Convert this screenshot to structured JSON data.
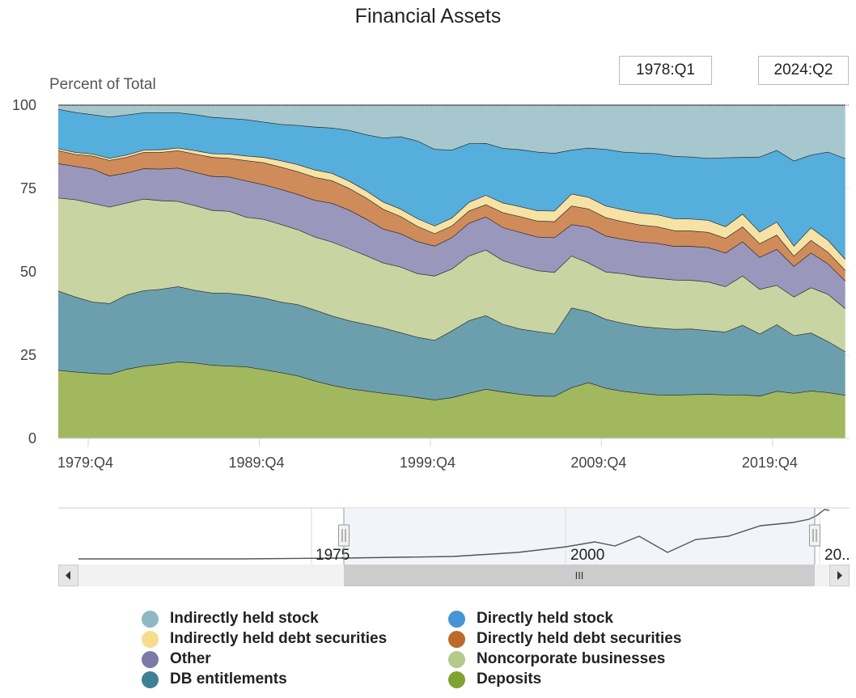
{
  "title": "Financial Assets",
  "range_selector": {
    "from": "1978:Q1",
    "to": "2024:Q2"
  },
  "navigator": {
    "tick_labels": [
      "1975",
      "2000",
      "20.."
    ],
    "scroll_thumb_glyph": "III",
    "handle_glyph": "||",
    "left_arrow": "◀",
    "right_arrow": "▶",
    "selected_range": [
      "1978:Q1",
      "2024:Q2"
    ]
  },
  "legend": [
    {
      "name": "Indirectly held stock",
      "color": "#8fb8c4"
    },
    {
      "name": "Directly held stock",
      "color": "#4695d6"
    },
    {
      "name": "Indirectly held debt securities",
      "color": "#f6dc8c"
    },
    {
      "name": "Directly held debt securities",
      "color": "#bb6a2a"
    },
    {
      "name": "Other",
      "color": "#7b7aa8"
    },
    {
      "name": "Noncorporate businesses",
      "color": "#b5c98c"
    },
    {
      "name": "DB entitlements",
      "color": "#3f8092"
    },
    {
      "name": "Deposits",
      "color": "#7fa232"
    }
  ],
  "chart_data": {
    "type": "area",
    "stacking": "percent",
    "title": "Financial Assets",
    "xlabel": "",
    "ylabel": "Percent of Total",
    "ylim": [
      0,
      100
    ],
    "yticks": [
      0,
      25,
      50,
      75,
      100
    ],
    "xtick_labels": [
      "1979:Q4",
      "1989:Q4",
      "1999:Q4",
      "2009:Q4",
      "2019:Q4"
    ],
    "grid": true,
    "legend_position": "bottom",
    "x": [
      1978,
      1979,
      1980,
      1981,
      1982,
      1983,
      1984,
      1985,
      1986,
      1987,
      1988,
      1989,
      1990,
      1991,
      1992,
      1993,
      1994,
      1995,
      1996,
      1997,
      1998,
      1999,
      2000,
      2001,
      2002,
      2003,
      2004,
      2005,
      2006,
      2007,
      2008,
      2009,
      2010,
      2011,
      2012,
      2013,
      2014,
      2015,
      2016,
      2017,
      2018,
      2019,
      2020,
      2021,
      2022,
      2023,
      2024
    ],
    "series": [
      {
        "name": "Deposits",
        "color": "#a1b85e",
        "values": [
          20.5,
          20.0,
          19.6,
          19.3,
          20.8,
          21.8,
          22.3,
          23.0,
          22.7,
          22.0,
          21.8,
          21.5,
          20.7,
          19.8,
          18.8,
          17.3,
          16.0,
          15.0,
          14.3,
          13.6,
          13.0,
          12.3,
          11.6,
          12.3,
          13.6,
          14.8,
          14.0,
          13.3,
          12.8,
          12.7,
          15.3,
          16.8,
          15.1,
          14.2,
          13.6,
          13.1,
          13.0,
          13.2,
          13.3,
          13.1,
          13.1,
          12.8,
          14.2,
          13.6,
          14.3,
          13.8,
          13.0
        ]
      },
      {
        "name": "DB entitlements",
        "color": "#6c9fae",
        "values": [
          23.8,
          22.5,
          21.4,
          21.2,
          22.3,
          22.6,
          22.5,
          22.6,
          21.8,
          21.7,
          21.8,
          21.5,
          21.5,
          21.2,
          21.4,
          21.3,
          20.8,
          20.4,
          20.0,
          19.6,
          18.8,
          18.1,
          17.9,
          20.0,
          21.8,
          22.1,
          20.3,
          19.6,
          19.3,
          18.7,
          23.9,
          21.3,
          20.7,
          20.4,
          20.1,
          20.1,
          19.8,
          19.7,
          19.1,
          18.9,
          20.9,
          18.6,
          20.0,
          17.3,
          17.4,
          15.3,
          13.1
        ]
      },
      {
        "name": "Noncorporate businesses",
        "color": "#c8d4a2",
        "values": [
          27.9,
          29.2,
          29.6,
          29.0,
          27.6,
          27.5,
          26.6,
          25.6,
          25.4,
          24.8,
          24.6,
          23.4,
          23.6,
          23.3,
          22.5,
          21.9,
          22.2,
          21.6,
          20.6,
          19.5,
          19.7,
          19.1,
          19.3,
          18.6,
          19.4,
          19.7,
          19.1,
          18.9,
          18.3,
          18.5,
          15.6,
          14.6,
          14.2,
          14.9,
          14.9,
          14.9,
          14.8,
          14.6,
          14.6,
          13.6,
          14.8,
          13.4,
          11.8,
          11.6,
          13.6,
          14.2,
          12.9
        ]
      },
      {
        "name": "Other",
        "color": "#9a97bd",
        "values": [
          10.3,
          10.0,
          10.3,
          9.3,
          9.0,
          9.1,
          9.5,
          10.0,
          10.0,
          10.2,
          10.3,
          10.9,
          10.4,
          10.5,
          10.6,
          11.0,
          11.6,
          11.6,
          11.0,
          10.2,
          10.0,
          9.6,
          9.0,
          9.4,
          9.8,
          9.9,
          9.9,
          10.1,
          10.1,
          10.4,
          9.4,
          10.8,
          10.8,
          10.3,
          10.4,
          10.5,
          10.1,
          10.2,
          10.3,
          10.1,
          10.3,
          9.6,
          10.8,
          9.2,
          10.4,
          9.1,
          8.3
        ]
      },
      {
        "name": "Directly held debt securities",
        "color": "#cf8c5a",
        "values": [
          3.9,
          3.6,
          3.9,
          4.7,
          4.7,
          4.9,
          5.0,
          5.2,
          5.5,
          5.7,
          5.6,
          6.1,
          6.6,
          6.7,
          6.8,
          6.9,
          6.8,
          6.5,
          6.3,
          5.9,
          5.2,
          4.6,
          3.7,
          3.5,
          3.7,
          3.7,
          4.5,
          4.7,
          4.8,
          4.8,
          5.6,
          5.4,
          5.5,
          5.3,
          5.1,
          5.0,
          4.7,
          4.6,
          4.6,
          4.4,
          4.5,
          4.1,
          4.3,
          3.1,
          3.8,
          3.5,
          3.2
        ]
      },
      {
        "name": "Indirectly held debt securities",
        "color": "#f6e2a4",
        "values": [
          0.6,
          0.6,
          0.6,
          0.6,
          0.7,
          0.7,
          0.8,
          0.8,
          1.0,
          1.1,
          1.3,
          1.4,
          1.6,
          1.9,
          2.1,
          2.2,
          2.2,
          2.2,
          2.2,
          2.2,
          2.2,
          2.3,
          2.3,
          2.4,
          2.6,
          2.8,
          2.9,
          3.0,
          3.1,
          3.2,
          3.6,
          3.5,
          3.5,
          3.6,
          3.6,
          3.6,
          3.6,
          3.6,
          3.6,
          3.5,
          3.8,
          3.5,
          3.9,
          3.0,
          3.8,
          3.6,
          3.3
        ]
      },
      {
        "name": "Directly held stock",
        "color": "#55aedb",
        "values": [
          11.8,
          12.0,
          11.8,
          12.4,
          12.0,
          11.2,
          11.1,
          10.6,
          10.8,
          10.9,
          10.7,
          10.9,
          10.6,
          10.9,
          11.8,
          12.9,
          13.6,
          15.2,
          16.8,
          19.2,
          21.7,
          23.3,
          23.0,
          20.4,
          17.6,
          15.6,
          16.4,
          17.1,
          17.6,
          17.3,
          13.2,
          14.8,
          17.0,
          17.3,
          18.0,
          18.3,
          18.7,
          18.6,
          18.6,
          20.7,
          17.0,
          22.5,
          21.5,
          25.5,
          21.8,
          26.5,
          30.2
        ]
      },
      {
        "name": "Indirectly held stock",
        "color": "#a7c7cf",
        "values": [
          1.2,
          2.1,
          2.8,
          3.5,
          2.9,
          2.2,
          2.2,
          2.2,
          2.8,
          3.6,
          3.9,
          4.4,
          5.0,
          5.7,
          6.0,
          6.5,
          6.8,
          7.5,
          8.8,
          9.8,
          9.4,
          10.7,
          13.2,
          13.4,
          11.5,
          11.4,
          12.9,
          13.3,
          14.0,
          14.4,
          13.4,
          12.8,
          13.2,
          14.0,
          14.3,
          14.5,
          15.3,
          15.5,
          15.9,
          15.7,
          15.6,
          15.5,
          13.5,
          16.7,
          14.9,
          14.0,
          16.0
        ]
      }
    ]
  }
}
